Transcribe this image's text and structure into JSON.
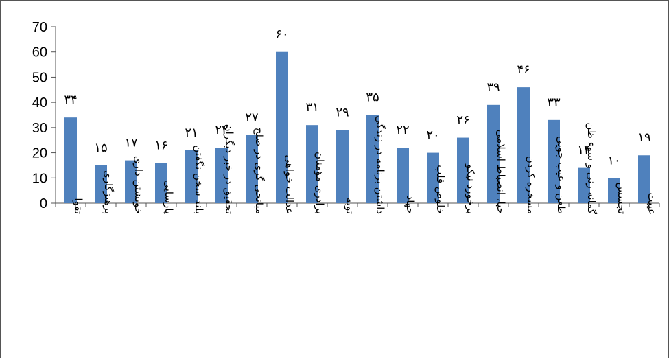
{
  "chart_data": {
    "type": "bar",
    "categories": [
      "تقوا",
      "پرهیزگاری",
      "خویشتن داری",
      "پارسایی",
      "بلند سخن نگفتن",
      "تحقیق در خبر دیگران",
      "میانجی گری در صلح",
      "عدالت خواهی",
      "برادری مؤمنان",
      "توبه",
      "داشتن برنامه در زندگی",
      "جهاد",
      "خلوص قلب",
      "برخورد نیکو",
      "حیا، انضباط اسلامی",
      "مسخره کردن",
      "طعن و عیب جویی",
      "گمانه زنی و سوء ظن",
      "تجسس",
      "غیبت"
    ],
    "values": [
      34,
      15,
      17,
      16,
      21,
      22,
      27,
      60,
      31,
      29,
      35,
      22,
      20,
      26,
      39,
      46,
      33,
      14,
      10,
      19
    ],
    "data_labels": [
      "۳۴",
      "۱۵",
      "۱۷",
      "۱۶",
      "۲۱",
      "۲۲",
      "۲۷",
      "۶۰",
      "۳۱",
      "۲۹",
      "۳۵",
      "۲۲",
      "۲۰",
      "۲۶",
      "۳۹",
      "۴۶",
      "۳۳",
      "۱۴",
      "۱۰",
      "۱۹"
    ],
    "y_ticks": [
      "0",
      "10",
      "20",
      "30",
      "40",
      "50",
      "60",
      "70"
    ],
    "ylim": [
      0,
      70
    ],
    "bar_color": "#4f81bd",
    "grid": false,
    "legend": "none"
  }
}
